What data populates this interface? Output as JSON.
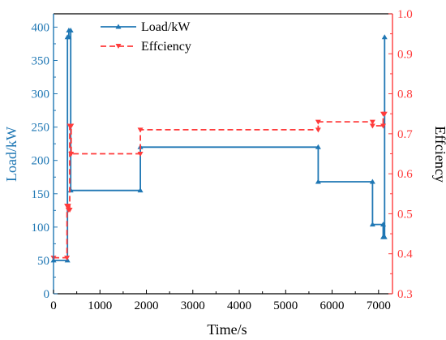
{
  "chart_data": {
    "type": "line",
    "xlabel": "Time/s",
    "ylabel_left": "Load/kW",
    "ylabel_right": "Effciency",
    "xlim": [
      0,
      7300
    ],
    "ylim_left": [
      0,
      420
    ],
    "ylim_right": [
      0.3,
      1.0
    ],
    "x_ticks": [
      0,
      1000,
      2000,
      3000,
      4000,
      5000,
      6000,
      7000
    ],
    "y_left_ticks": [
      0,
      50,
      100,
      150,
      200,
      250,
      300,
      350,
      400
    ],
    "y_right_ticks": [
      0.3,
      0.4,
      0.5,
      0.6,
      0.7,
      0.8,
      0.9,
      1.0
    ],
    "legend_position": "top-center",
    "colors": {
      "load": "#1f77b4",
      "efficiency": "#ff3b3b",
      "left_axis": "#1f77b4",
      "right_axis": "#ff3b3b"
    },
    "series": [
      {
        "name": "Load/kW",
        "axis": "left",
        "style": "solid",
        "marker": "triangle-up",
        "x": [
          0,
          300,
          300,
          330,
          330,
          370,
          370,
          1870,
          1870,
          5700,
          5700,
          6870,
          6870,
          7100,
          7100,
          7130,
          7130
        ],
        "y": [
          50,
          50,
          385,
          385,
          395,
          395,
          155,
          155,
          220,
          220,
          168,
          168,
          104,
          104,
          85,
          85,
          385
        ]
      },
      {
        "name": "Effciency",
        "axis": "right",
        "style": "dashed",
        "marker": "triangle-down",
        "x": [
          0,
          290,
          290,
          320,
          320,
          350,
          350,
          380,
          380,
          1870,
          1870,
          5700,
          5700,
          6870,
          6870,
          7100,
          7100,
          7130
        ],
        "y": [
          0.39,
          0.39,
          0.52,
          0.52,
          0.51,
          0.51,
          0.72,
          0.72,
          0.65,
          0.65,
          0.71,
          0.71,
          0.73,
          0.73,
          0.72,
          0.72,
          0.75,
          0.75
        ]
      }
    ]
  }
}
